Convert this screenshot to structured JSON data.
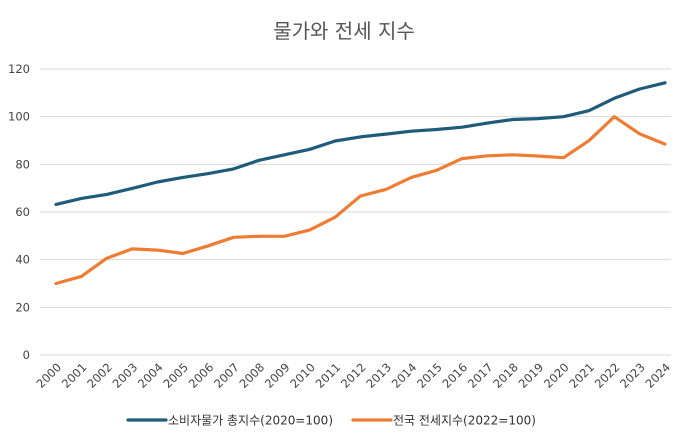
{
  "chart_data": {
    "type": "line",
    "title": "물가와 전세 지수",
    "x": [
      "2000",
      "2001",
      "2002",
      "2003",
      "2004",
      "2005",
      "2006",
      "2007",
      "2008",
      "2009",
      "2010",
      "2011",
      "2012",
      "2013",
      "2014",
      "2015",
      "2016",
      "2017",
      "2018",
      "2019",
      "2020",
      "2021",
      "2022",
      "2023",
      "2024"
    ],
    "ylim": [
      0,
      120
    ],
    "yticks": [
      0,
      20,
      40,
      60,
      80,
      100,
      120
    ],
    "grid": true,
    "legend_position": "bottom",
    "series": [
      {
        "name": "소비자물가 총지수(2020=100)",
        "color": "#1f5b7a",
        "values": [
          63.2,
          65.7,
          67.4,
          69.9,
          72.6,
          74.5,
          76.1,
          78.1,
          81.7,
          84.0,
          86.3,
          89.8,
          91.5,
          92.7,
          93.9,
          94.6,
          95.6,
          97.3,
          98.8,
          99.2,
          100.0,
          102.5,
          107.7,
          111.6,
          114.2
        ]
      },
      {
        "name": "전국 전세지수(2022=100)",
        "color": "#ef7c33",
        "values": [
          30.0,
          33.0,
          40.6,
          44.5,
          44.0,
          42.6,
          45.8,
          49.4,
          49.8,
          49.8,
          52.5,
          57.8,
          66.7,
          69.5,
          74.5,
          77.5,
          82.4,
          83.6,
          84.0,
          83.5,
          82.8,
          89.9,
          100.0,
          92.8,
          88.5
        ]
      }
    ]
  }
}
